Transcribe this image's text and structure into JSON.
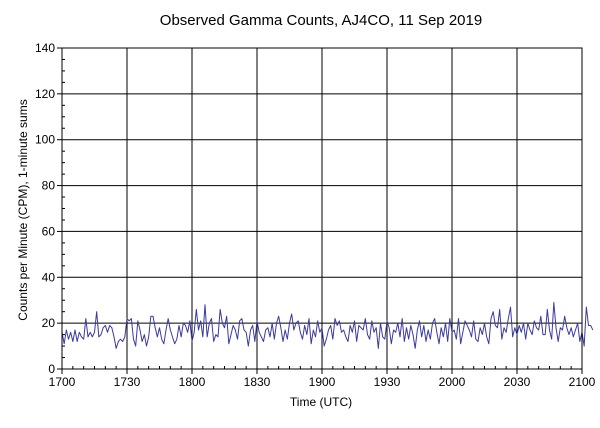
{
  "chart_data": {
    "type": "line",
    "title": "Observed Gamma Counts, AJ4CO, 11 Sep 2019",
    "xlabel": "Time (UTC)",
    "ylabel": "Counts per Minute (CPM), 1-minute sums",
    "xlim": [
      0,
      240
    ],
    "ylim": [
      0,
      140
    ],
    "x_tick_minutes": [
      0,
      30,
      60,
      90,
      120,
      150,
      180,
      210,
      240
    ],
    "x_tick_labels": [
      "1700",
      "1730",
      "1800",
      "1830",
      "1900",
      "1930",
      "2000",
      "2030",
      "2100"
    ],
    "y_ticks": [
      0,
      20,
      40,
      60,
      80,
      100,
      120,
      140
    ],
    "grid": true,
    "line_color": "#3a3aa0",
    "grid_color": "#000000",
    "series": [
      {
        "x_start_minute": 0,
        "x_step_minutes": 1,
        "values": [
          16,
          11,
          17,
          13,
          16,
          12,
          17,
          12,
          16,
          14,
          13,
          22,
          14,
          16,
          14,
          16,
          25,
          14,
          15,
          18,
          19,
          16,
          19,
          18,
          14,
          9,
          12,
          13,
          12,
          14,
          22,
          21,
          22,
          13,
          10,
          21,
          17,
          12,
          15,
          10,
          14,
          23,
          23,
          18,
          14,
          18,
          13,
          11,
          17,
          22,
          17,
          14,
          11,
          13,
          19,
          14,
          20,
          19,
          16,
          21,
          12,
          16,
          26,
          17,
          21,
          14,
          28,
          14,
          20,
          22,
          12,
          15,
          14,
          26,
          20,
          18,
          23,
          11,
          15,
          19,
          17,
          13,
          21,
          22,
          17,
          16,
          10,
          17,
          19,
          12,
          21,
          16,
          14,
          12,
          17,
          18,
          14,
          20,
          13,
          20,
          23,
          18,
          12,
          17,
          13,
          20,
          24,
          17,
          20,
          21,
          16,
          13,
          19,
          15,
          22,
          11,
          17,
          14,
          21,
          16,
          18,
          10,
          13,
          17,
          19,
          13,
          22,
          19,
          21,
          16,
          17,
          14,
          12,
          19,
          16,
          21,
          12,
          19,
          18,
          17,
          22,
          15,
          13,
          21,
          16,
          18,
          9,
          20,
          14,
          13,
          21,
          18,
          11,
          17,
          16,
          20,
          14,
          22,
          12,
          18,
          13,
          19,
          15,
          9,
          17,
          21,
          14,
          19,
          12,
          17,
          13,
          20,
          22,
          16,
          11,
          18,
          14,
          20,
          12,
          22,
          16,
          17,
          13,
          22,
          11,
          16,
          21,
          19,
          17,
          14,
          21,
          13,
          12,
          18,
          15,
          20,
          14,
          11,
          22,
          25,
          19,
          18,
          26,
          13,
          18,
          16,
          22,
          27,
          14,
          18,
          15,
          19,
          16,
          20,
          13,
          20,
          17,
          15,
          21,
          18,
          17,
          23,
          15,
          15,
          26,
          17,
          13,
          29,
          18,
          12,
          18,
          17,
          23,
          18,
          15,
          18,
          14,
          17,
          20,
          12,
          16,
          10,
          27,
          19,
          19,
          17
        ]
      }
    ]
  }
}
